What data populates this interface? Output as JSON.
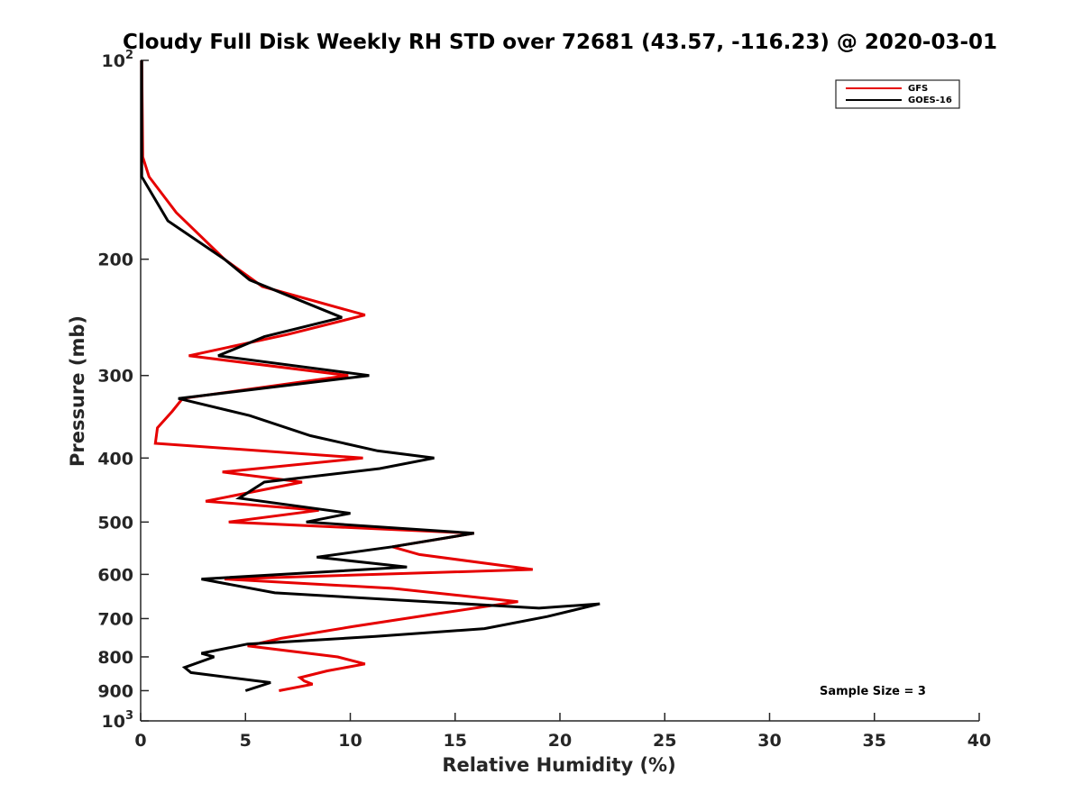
{
  "chart_data": {
    "type": "line",
    "title": "Cloudy Full Disk Weekly RH STD over 72681 (43.57, -116.23) @ 2020-03-01",
    "xlabel": "Relative Humidity (%)",
    "ylabel": "Pressure (mb)",
    "xlim": [
      0,
      40
    ],
    "ylim": [
      100,
      1000
    ],
    "y_scale": "log",
    "y_reversed": true,
    "x_ticks": [
      "0",
      "5",
      "10",
      "15",
      "20",
      "25",
      "30",
      "35",
      "40"
    ],
    "y_ticks": [
      {
        "value": 100,
        "base": "10",
        "exp": "2"
      },
      {
        "value": 200,
        "label": "200"
      },
      {
        "value": 300,
        "label": "300"
      },
      {
        "value": 400,
        "label": "400"
      },
      {
        "value": 500,
        "label": "500"
      },
      {
        "value": 600,
        "label": "600"
      },
      {
        "value": 700,
        "label": "700"
      },
      {
        "value": 800,
        "label": "800"
      },
      {
        "value": 900,
        "label": "900"
      },
      {
        "value": 1000,
        "base": "10",
        "exp": "3"
      }
    ],
    "grid": false,
    "legend_position": "top-right",
    "annotation": "Sample Size = 3",
    "series": [
      {
        "name": "GFS",
        "color": "#e60000",
        "points": [
          [
            0.05,
            100
          ],
          [
            0.1,
            140
          ],
          [
            0.4,
            150
          ],
          [
            1.7,
            170
          ],
          [
            4.0,
            200
          ],
          [
            5.8,
            220
          ],
          [
            10.7,
            243
          ],
          [
            7.0,
            260
          ],
          [
            2.3,
            280
          ],
          [
            9.9,
            300
          ],
          [
            2.0,
            325
          ],
          [
            1.5,
            340
          ],
          [
            0.8,
            360
          ],
          [
            0.7,
            380
          ],
          [
            10.6,
            400
          ],
          [
            3.9,
            420
          ],
          [
            7.7,
            435
          ],
          [
            3.1,
            465
          ],
          [
            8.5,
            480
          ],
          [
            4.2,
            500
          ],
          [
            15.9,
            520
          ],
          [
            12.0,
            545
          ],
          [
            13.3,
            560
          ],
          [
            18.7,
            590
          ],
          [
            4.0,
            610
          ],
          [
            12.0,
            630
          ],
          [
            18.0,
            660
          ],
          [
            13.9,
            690
          ],
          [
            10.1,
            720
          ],
          [
            6.7,
            750
          ],
          [
            5.1,
            770
          ],
          [
            9.4,
            800
          ],
          [
            10.7,
            820
          ],
          [
            8.9,
            840
          ],
          [
            7.6,
            860
          ],
          [
            7.8,
            870
          ],
          [
            8.2,
            880
          ],
          [
            6.6,
            900
          ]
        ]
      },
      {
        "name": "GOES-16",
        "color": "#000000",
        "points": [
          [
            0.05,
            100
          ],
          [
            0.05,
            150
          ],
          [
            1.3,
            175
          ],
          [
            4.0,
            200
          ],
          [
            5.2,
            215
          ],
          [
            9.6,
            245
          ],
          [
            5.9,
            262
          ],
          [
            3.7,
            280
          ],
          [
            10.9,
            300
          ],
          [
            1.8,
            325
          ],
          [
            5.2,
            345
          ],
          [
            8.1,
            370
          ],
          [
            11.3,
            390
          ],
          [
            14.0,
            400
          ],
          [
            11.4,
            415
          ],
          [
            5.9,
            435
          ],
          [
            4.7,
            460
          ],
          [
            10.0,
            485
          ],
          [
            7.9,
            500
          ],
          [
            15.9,
            520
          ],
          [
            12.0,
            545
          ],
          [
            8.4,
            565
          ],
          [
            12.7,
            585
          ],
          [
            2.9,
            610
          ],
          [
            6.4,
            640
          ],
          [
            19.0,
            675
          ],
          [
            21.9,
            665
          ],
          [
            19.4,
            695
          ],
          [
            16.4,
            725
          ],
          [
            11.2,
            745
          ],
          [
            5.1,
            765
          ],
          [
            2.9,
            790
          ],
          [
            3.5,
            800
          ],
          [
            2.1,
            830
          ],
          [
            2.4,
            845
          ],
          [
            6.2,
            875
          ],
          [
            5.0,
            900
          ]
        ]
      }
    ]
  }
}
